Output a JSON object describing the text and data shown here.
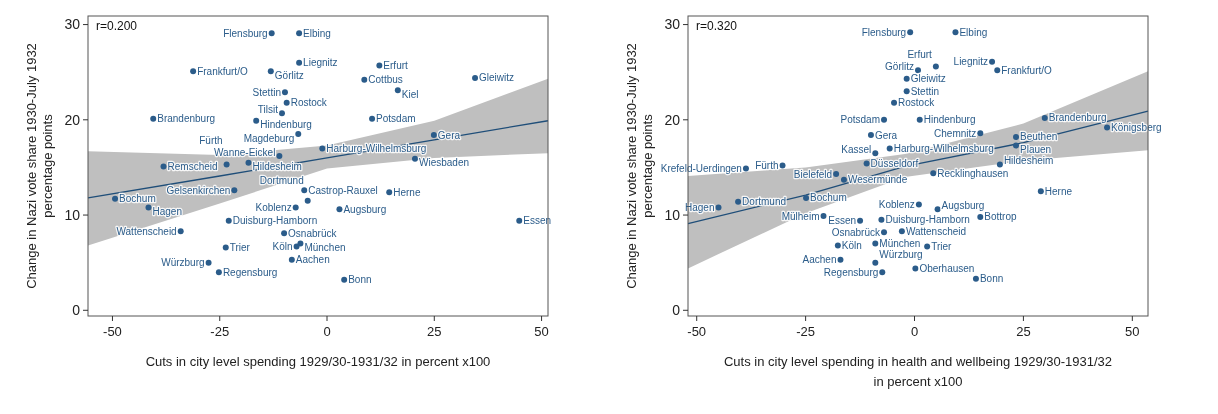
{
  "chart_data": [
    {
      "type": "scatter",
      "xlabel": "Cuts in city level spending 1929/30-1931/32 in percent x100",
      "ylabel": "Change in Nazi vote share 1930-July 1932\npercentage points",
      "annotations": [
        "r=0.200"
      ],
      "xlim": [
        -55.7,
        51.5
      ],
      "ylim": [
        -0.6,
        30.9
      ],
      "xticks": [
        -50,
        -25,
        0,
        25,
        50
      ],
      "yticks": [
        0,
        10,
        20,
        30
      ],
      "grid": false,
      "series": [
        {
          "type": "line",
          "color": "#1f4e79",
          "x": [
            -55.7,
            -25,
            0,
            25,
            51.5
          ],
          "values": [
            11.8,
            14.1,
            16.0,
            17.9,
            19.9
          ],
          "lower": [
            6.8,
            11.2,
            14.9,
            16.0,
            16.5
          ],
          "upper": [
            16.7,
            16.3,
            17.3,
            19.9,
            24.3
          ]
        },
        {
          "type": "scatter",
          "marker": "circle",
          "color": "#2b5c8a",
          "x": [
            -12.9,
            -6.5,
            -6.5,
            -31.2,
            -13.1,
            12.2,
            8.7,
            16.5,
            34.5,
            -9.8,
            -9.4,
            -10.5,
            -40.5,
            -16.5,
            10.5,
            24.9,
            -38.1,
            20.5,
            -21.6,
            14.5,
            -49.4,
            -41.6,
            -4.5,
            2.9,
            -7.3,
            -22.9,
            -34.1,
            -10.0,
            -6.2,
            -7.1,
            -23.6,
            44.8,
            -8.2,
            -27.6,
            -25.2,
            4.0,
            -1.1,
            -18.3,
            -23.4,
            -5.3,
            -6.7,
            -11.1
          ],
          "values": [
            29.1,
            29.1,
            26.0,
            25.1,
            25.1,
            25.7,
            24.2,
            23.1,
            24.4,
            22.9,
            21.8,
            20.7,
            20.1,
            19.9,
            20.1,
            18.4,
            15.1,
            15.9,
            12.6,
            12.4,
            11.7,
            10.8,
            11.5,
            10.6,
            10.8,
            9.4,
            8.3,
            8.1,
            7.0,
            6.7,
            6.6,
            9.4,
            5.3,
            5.0,
            4.0,
            3.2,
            17.0,
            15.5,
            15.3,
            12.6,
            18.5,
            16.2
          ],
          "value_labels": [
            "Flensburg",
            "Elbing",
            "Liegnitz",
            "Frankfurt/O",
            "Görlitz",
            "Erfurt",
            "Cottbus",
            "Kiel",
            "Gleiwitz",
            "Stettin",
            "Rostock",
            "Tilsit",
            "Brandenburg",
            "Hindenburg",
            "Potsdam",
            "Gera",
            "Remscheid",
            "Wiesbaden",
            "Gelsenkirchen",
            "Herne",
            "Bochum",
            "Hagen",
            "Dortmund",
            "Augsburg",
            "Koblenz",
            "Duisburg-Hamborn",
            "Wattenscheid",
            "Osnabrück",
            "München",
            "Köln",
            "Trier",
            "Essen",
            "Aachen",
            "Würzburg",
            "Regensburg",
            "Bonn",
            "Harburg-Wilhelmsburg",
            "Hildesheim",
            "Fürth",
            "Castrop-Rauxel",
            "Magdeburg",
            "Wanne-Eickel"
          ]
        }
      ]
    },
    {
      "type": "scatter",
      "xlabel": "Cuts in city level spending in health and wellbeing 1929/30-1931/32\nin percent x100",
      "ylabel": "Change in Nazi vote share 1930-July 1932\npercentage points",
      "annotations": [
        "r=0.320"
      ],
      "xlim": [
        -52,
        53.6
      ],
      "ylim": [
        -0.6,
        30.9
      ],
      "xticks": [
        -50,
        -25,
        0,
        25,
        50
      ],
      "yticks": [
        0,
        10,
        20,
        30
      ],
      "grid": false,
      "series": [
        {
          "type": "line",
          "color": "#1f4e79",
          "x": [
            -52,
            -25,
            -2.2,
            25,
            53.6
          ],
          "values": [
            9.1,
            12.1,
            15.1,
            17.6,
            20.9
          ],
          "lower": [
            4.4,
            10.2,
            14.0,
            15.7,
            16.8
          ],
          "upper": [
            14.1,
            15.0,
            16.4,
            19.6,
            25.1
          ]
        },
        {
          "type": "scatter",
          "marker": "circle",
          "color": "#2b5c8a",
          "x": [
            -1.0,
            9.4,
            17.8,
            19.0,
            4.9,
            0.8,
            -1.8,
            -1.8,
            -4.7,
            -7.0,
            1.2,
            29.9,
            44.2,
            -10.0,
            -9.0,
            -5.7,
            23.3,
            15.1,
            23.3,
            -38.7,
            -30.3,
            -45.0,
            -40.5,
            -24.9,
            -11.0,
            -18.0,
            -16.2,
            4.3,
            19.6,
            29.0,
            1.0,
            5.3,
            15.1,
            -20.9,
            -12.5,
            -7.6,
            -2.9,
            -7.0,
            -17.6,
            -9.0,
            2.9,
            -17.0,
            -9.0,
            0.2,
            -7.4,
            14.1
          ],
          "values": [
            29.2,
            29.2,
            26.1,
            25.2,
            25.6,
            25.2,
            24.3,
            23.0,
            21.8,
            20.0,
            20.0,
            20.2,
            19.2,
            18.4,
            16.5,
            17.0,
            18.2,
            18.6,
            17.3,
            14.9,
            15.2,
            10.8,
            11.4,
            11.8,
            15.4,
            14.3,
            13.7,
            14.4,
            15.3,
            12.5,
            11.1,
            10.6,
            9.8,
            9.9,
            9.4,
            9.5,
            8.3,
            8.2,
            6.8,
            7.0,
            6.7,
            5.3,
            5.0,
            4.4,
            4.0,
            3.3
          ],
          "value_labels": [
            "Flensburg",
            "Elbing",
            "Liegnitz",
            "Frankfurt/O",
            "Erfurt",
            "Görlitz",
            "Gleiwitz",
            "Stettin",
            "Rostock",
            "Potsdam",
            "Hindenburg",
            "Brandenburg",
            "Königsberg",
            "Gera",
            "Kassel",
            "Harburg-Wilhelmsburg",
            "Beuthen",
            "Chemnitz",
            "Plauen",
            "Krefeld-Uerdingen",
            "Fürth",
            "Hagen",
            "Dortmund",
            "Bochum",
            "Düsseldorf",
            "Bielefeld",
            "Wesermünde",
            "Recklinghausen",
            "Hildesheim",
            "Herne",
            "Koblenz",
            "Augsburg",
            "Bottrop",
            "Mülheim",
            "Essen",
            "Duisburg-Hamborn",
            "Wattenscheid",
            "Osnabrück",
            "Köln",
            "München",
            "Trier",
            "Aachen",
            "Würzburg",
            "Oberhausen",
            "Regensburg",
            "Bonn"
          ]
        }
      ]
    }
  ]
}
